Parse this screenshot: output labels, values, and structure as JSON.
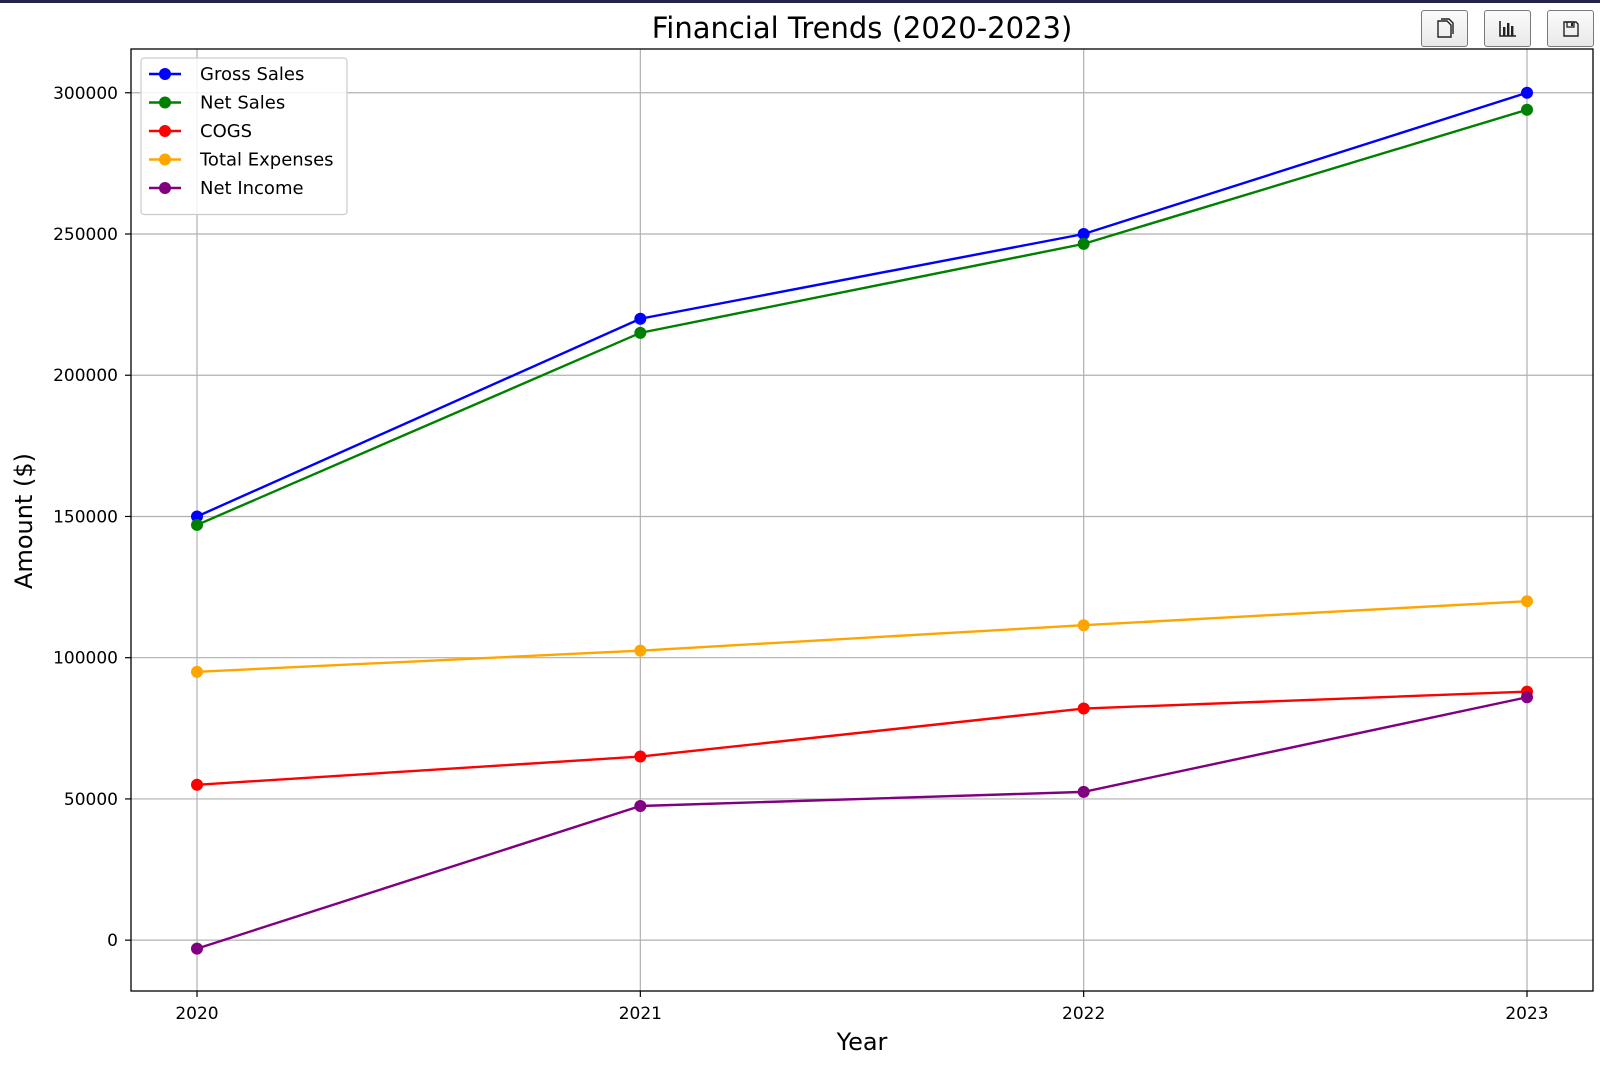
{
  "toolbar": {
    "buttons": [
      {
        "name": "copy-button",
        "icon": "copy-icon"
      },
      {
        "name": "chart-button",
        "icon": "bar-chart-icon"
      },
      {
        "name": "save-button",
        "icon": "save-icon"
      }
    ]
  },
  "chart_data": {
    "type": "line",
    "title": "Financial Trends (2020-2023)",
    "xlabel": "Year",
    "ylabel": "Amount ($)",
    "x": [
      2020,
      2021,
      2022,
      2023
    ],
    "x_tick_labels": [
      "2020",
      "2021",
      "2022",
      "2023"
    ],
    "ylim": [
      -18000,
      315500
    ],
    "y_ticks": [
      0,
      50000,
      100000,
      150000,
      200000,
      250000,
      300000
    ],
    "y_tick_labels": [
      "0",
      "50000",
      "100000",
      "150000",
      "200000",
      "250000",
      "300000"
    ],
    "grid": true,
    "legend_position": "top-left",
    "marker": "circle",
    "series": [
      {
        "name": "Gross Sales",
        "color": "#0000ff",
        "values": [
          150000,
          220000,
          250000,
          300000
        ]
      },
      {
        "name": "Net Sales",
        "color": "#008000",
        "values": [
          147000,
          215000,
          246500,
          294000
        ]
      },
      {
        "name": "COGS",
        "color": "#ff0000",
        "values": [
          55000,
          65000,
          82000,
          88000
        ]
      },
      {
        "name": "Total Expenses",
        "color": "#ffa500",
        "values": [
          95000,
          102500,
          111500,
          120000
        ]
      },
      {
        "name": "Net Income",
        "color": "#800080",
        "values": [
          -3000,
          47500,
          52500,
          86000
        ]
      }
    ]
  }
}
